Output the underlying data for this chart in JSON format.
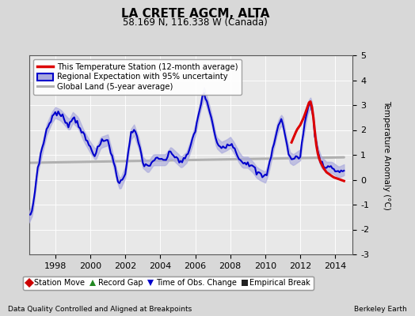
{
  "title": "LA CRETE AGCM, ALTA",
  "subtitle": "58.169 N, 116.338 W (Canada)",
  "ylabel": "Temperature Anomaly (°C)",
  "xlabel_left": "Data Quality Controlled and Aligned at Breakpoints",
  "xlabel_right": "Berkeley Earth",
  "ylim": [
    -3,
    5
  ],
  "xlim_start": 1996.5,
  "xlim_end": 2015.0,
  "xticks": [
    1998,
    2000,
    2002,
    2004,
    2006,
    2008,
    2010,
    2012,
    2014
  ],
  "yticks": [
    -3,
    -2,
    -1,
    0,
    1,
    2,
    3,
    4,
    5
  ],
  "bg_color": "#d8d8d8",
  "plot_bg_color": "#e8e8e8",
  "grid_color": "#cccccc",
  "red_line_color": "#dd0000",
  "blue_line_color": "#0000cc",
  "blue_fill_color": "#aaaadd",
  "gray_line_color": "#b0b0b0",
  "legend1_items": [
    {
      "label": "This Temperature Station (12-month average)",
      "color": "#dd0000",
      "lw": 2.5
    },
    {
      "label": "Regional Expectation with 95% uncertainty",
      "color": "#0000cc",
      "lw": 2.0
    },
    {
      "label": "Global Land (5-year average)",
      "color": "#b0b0b0",
      "lw": 2.0
    }
  ],
  "legend2_items": [
    {
      "label": "Station Move",
      "marker": "D",
      "color": "#cc0000"
    },
    {
      "label": "Record Gap",
      "marker": "^",
      "color": "#228822"
    },
    {
      "label": "Time of Obs. Change",
      "marker": "v",
      "color": "#0000cc"
    },
    {
      "label": "Empirical Break",
      "marker": "s",
      "color": "#222222"
    }
  ]
}
